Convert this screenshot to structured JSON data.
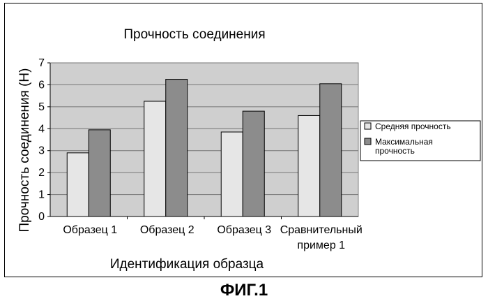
{
  "figure_label": "ФИГ.1",
  "chart_data": {
    "type": "bar",
    "title": "Прочность соединения",
    "xlabel": "Идентификация образца",
    "ylabel": "Прочность соединения (Н)",
    "categories": [
      [
        "Образец 1"
      ],
      [
        "Образец 2"
      ],
      [
        "Образец 3"
      ],
      [
        "Сравнительный",
        "пример 1"
      ]
    ],
    "series": [
      {
        "name": "Средняя прочность",
        "values": [
          2.9,
          5.25,
          3.85,
          4.6
        ],
        "color": "#e6e6e6"
      },
      {
        "name": "Максимальная прочность",
        "legend_lines": [
          "Максимальная",
          "прочность"
        ],
        "values": [
          3.95,
          6.25,
          4.8,
          6.05
        ],
        "color": "#8c8c8c"
      }
    ],
    "ylim": [
      0,
      7
    ],
    "yticks": [
      0,
      1,
      2,
      3,
      4,
      5,
      6,
      7
    ],
    "grid": true,
    "legend_position": "right",
    "plot_background": "#cfcfcf"
  }
}
